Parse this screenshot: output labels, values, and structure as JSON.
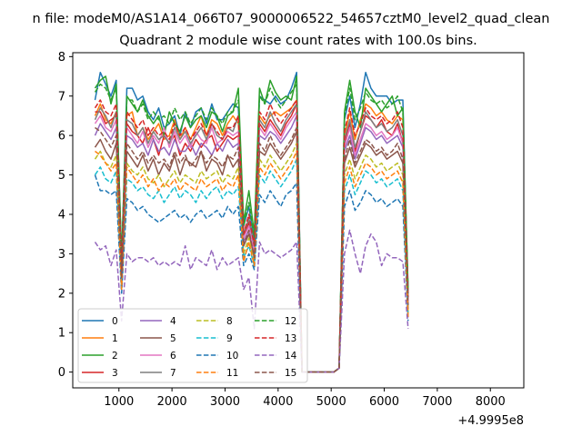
{
  "chart_data": {
    "type": "line",
    "suptitle": "n file: modeM0/AS1A14_066T07_9000006522_54657cztM0_level2_quad_clean",
    "title": "Quadrant 2 module wise count rates with 100.0s bins.",
    "xlabel": "",
    "ylabel": "",
    "x_offset_label": "+4.9995e8",
    "xlim": [
      130,
      8630
    ],
    "ylim": [
      -0.4,
      8.1
    ],
    "xticks": [
      1000,
      2000,
      3000,
      4000,
      5000,
      6000,
      7000,
      8000
    ],
    "yticks": [
      0,
      1,
      2,
      3,
      4,
      5,
      6,
      7,
      8
    ],
    "grid": false,
    "legend_position": "lower-left",
    "x_start": 550,
    "x_step": 100,
    "series": [
      {
        "name": "0",
        "color": "#1f77b4",
        "dash": "solid",
        "values": [
          6.9,
          7.6,
          7.3,
          7.0,
          7.4,
          2.8,
          7.2,
          7.2,
          6.9,
          7.0,
          6.6,
          6.4,
          6.7,
          6.2,
          6.3,
          6.5,
          6.0,
          6.6,
          6.2,
          6.6,
          6.7,
          6.3,
          6.8,
          6.4,
          6.4,
          6.6,
          6.8,
          6.7,
          3.7,
          4.2,
          3.3,
          7.0,
          6.9,
          6.8,
          7.0,
          6.8,
          6.9,
          7.2,
          7.6,
          0,
          0,
          0,
          0,
          0,
          0,
          0,
          0.1,
          6.4,
          7.0,
          6.2,
          6.8,
          7.6,
          7.2,
          7.0,
          7.0,
          7.0,
          6.8,
          6.9,
          6.9,
          2.0
        ]
      },
      {
        "name": "1",
        "color": "#ff7f0e",
        "dash": "solid",
        "values": [
          6.5,
          6.8,
          6.4,
          6.3,
          6.6,
          2.6,
          6.5,
          6.6,
          6.0,
          6.2,
          5.9,
          6.1,
          6.3,
          5.9,
          6.0,
          6.4,
          5.9,
          6.2,
          5.9,
          6.2,
          6.5,
          6.0,
          6.4,
          6.3,
          6.0,
          6.3,
          6.5,
          6.3,
          3.5,
          3.9,
          3.0,
          6.5,
          6.3,
          6.5,
          6.6,
          6.5,
          6.6,
          6.7,
          6.9,
          0,
          0,
          0,
          0,
          0,
          0,
          0,
          0.1,
          6.0,
          6.6,
          5.9,
          6.4,
          6.8,
          6.7,
          6.5,
          6.6,
          6.4,
          6.3,
          6.5,
          6.4,
          1.8
        ]
      },
      {
        "name": "2",
        "color": "#2ca02c",
        "dash": "solid",
        "values": [
          7.2,
          7.4,
          7.5,
          6.8,
          7.3,
          2.9,
          7.0,
          6.8,
          6.6,
          6.9,
          6.5,
          6.3,
          6.5,
          6.0,
          6.6,
          6.3,
          6.1,
          6.5,
          6.2,
          6.4,
          6.5,
          6.2,
          6.6,
          6.5,
          6.1,
          6.5,
          6.6,
          7.2,
          3.8,
          4.6,
          3.5,
          7.2,
          6.8,
          7.4,
          7.1,
          6.9,
          7.0,
          6.9,
          7.5,
          0,
          0,
          0,
          0,
          0,
          0,
          0,
          0.1,
          6.6,
          7.4,
          6.6,
          6.2,
          7.2,
          7.0,
          6.8,
          6.6,
          6.8,
          7.0,
          6.5,
          6.7,
          2.1
        ]
      },
      {
        "name": "3",
        "color": "#d62728",
        "dash": "solid",
        "values": [
          6.6,
          6.6,
          6.3,
          6.4,
          6.5,
          2.5,
          6.3,
          6.1,
          6.0,
          5.8,
          6.2,
          5.9,
          5.5,
          6.0,
          5.8,
          6.0,
          5.5,
          5.8,
          5.6,
          5.9,
          5.7,
          5.9,
          6.0,
          5.6,
          5.8,
          6.0,
          5.9,
          6.0,
          3.4,
          3.8,
          3.1,
          6.3,
          6.1,
          6.4,
          6.2,
          6.0,
          6.3,
          6.5,
          6.8,
          0,
          0,
          0,
          0,
          0,
          0,
          0,
          0.1,
          5.8,
          6.3,
          5.6,
          6.1,
          6.5,
          6.4,
          6.2,
          6.4,
          6.1,
          6.0,
          6.3,
          5.8,
          1.8
        ]
      },
      {
        "name": "4",
        "color": "#9467bd",
        "dash": "solid",
        "values": [
          6.0,
          6.3,
          6.1,
          5.9,
          6.2,
          2.4,
          6.0,
          5.9,
          5.7,
          5.8,
          5.5,
          5.9,
          5.6,
          5.7,
          5.5,
          5.9,
          5.6,
          5.6,
          5.8,
          5.5,
          5.8,
          5.7,
          5.5,
          5.8,
          5.6,
          5.9,
          5.7,
          5.8,
          3.3,
          3.6,
          3.0,
          6.0,
          5.9,
          6.1,
          6.0,
          5.8,
          6.0,
          6.2,
          6.5,
          0,
          0,
          0,
          0,
          0,
          0,
          0,
          0.1,
          5.6,
          6.0,
          5.4,
          5.8,
          6.2,
          6.1,
          5.9,
          6.0,
          5.8,
          5.9,
          6.0,
          5.7,
          1.7
        ]
      },
      {
        "name": "5",
        "color": "#8c564b",
        "dash": "solid",
        "values": [
          5.7,
          5.9,
          5.6,
          5.4,
          5.8,
          2.3,
          5.6,
          5.4,
          5.2,
          5.5,
          5.1,
          5.4,
          5.0,
          5.3,
          5.1,
          5.5,
          5.0,
          5.4,
          5.3,
          5.2,
          5.6,
          5.1,
          5.4,
          5.3,
          5.0,
          5.5,
          5.2,
          5.4,
          3.2,
          3.5,
          2.9,
          5.6,
          5.5,
          5.8,
          5.6,
          5.4,
          5.6,
          5.8,
          6.1,
          0,
          0,
          0,
          0,
          0,
          0,
          0,
          0.1,
          5.3,
          5.7,
          5.2,
          5.5,
          5.8,
          5.7,
          5.5,
          5.6,
          5.4,
          5.5,
          5.6,
          5.3,
          1.6
        ]
      },
      {
        "name": "6",
        "color": "#e377c2",
        "dash": "solid",
        "values": [
          6.3,
          6.5,
          6.2,
          6.1,
          6.4,
          2.5,
          6.2,
          6.0,
          5.8,
          6.1,
          5.7,
          6.0,
          5.8,
          6.2,
          5.7,
          6.1,
          5.8,
          6.0,
          5.7,
          6.1,
          5.9,
          5.8,
          6.2,
          5.8,
          5.9,
          6.1,
          6.0,
          6.1,
          3.4,
          3.7,
          3.1,
          6.2,
          6.0,
          6.3,
          6.1,
          5.9,
          6.2,
          6.4,
          6.6,
          0,
          0,
          0,
          0,
          0,
          0,
          0,
          0.1,
          5.7,
          6.2,
          5.5,
          5.9,
          6.3,
          6.2,
          6.0,
          6.1,
          5.9,
          6.0,
          6.2,
          5.8,
          1.8
        ]
      },
      {
        "name": "7",
        "color": "#7f7f7f",
        "dash": "solid",
        "values": [
          6.4,
          6.7,
          6.5,
          6.2,
          6.6,
          2.6,
          6.4,
          6.3,
          6.0,
          6.2,
          5.8,
          6.1,
          5.9,
          6.0,
          5.8,
          6.2,
          5.9,
          6.1,
          5.8,
          6.0,
          6.2,
          5.9,
          6.3,
          6.0,
          5.9,
          6.2,
          6.1,
          6.5,
          3.5,
          3.9,
          3.2,
          6.4,
          6.2,
          6.6,
          6.3,
          6.1,
          6.4,
          6.6,
          6.8,
          0,
          0,
          0,
          0,
          0,
          0,
          0,
          0.1,
          5.9,
          6.4,
          5.7,
          6.1,
          6.6,
          6.4,
          6.2,
          6.3,
          6.1,
          6.2,
          6.4,
          6.0,
          1.9
        ]
      },
      {
        "name": "8",
        "color": "#bcbd22",
        "dash": "dashed",
        "values": [
          5.4,
          5.6,
          5.3,
          5.2,
          5.5,
          2.2,
          5.3,
          5.1,
          5.0,
          5.2,
          4.9,
          4.8,
          5.0,
          4.7,
          4.9,
          5.1,
          4.8,
          5.0,
          4.9,
          4.8,
          5.1,
          4.9,
          5.0,
          5.1,
          4.8,
          5.0,
          4.9,
          5.2,
          3.0,
          3.4,
          2.8,
          5.4,
          5.2,
          5.5,
          5.3,
          5.1,
          5.3,
          5.5,
          5.8,
          0,
          0,
          0,
          0,
          0,
          0,
          0,
          0.1,
          5.0,
          5.4,
          4.9,
          5.2,
          5.5,
          5.4,
          5.2,
          5.3,
          5.1,
          5.2,
          5.3,
          5.0,
          1.5
        ]
      },
      {
        "name": "9",
        "color": "#17becf",
        "dash": "dashed",
        "values": [
          5.0,
          5.2,
          4.9,
          4.8,
          5.1,
          2.1,
          4.9,
          4.8,
          4.6,
          4.7,
          4.5,
          4.4,
          4.6,
          4.3,
          4.5,
          4.7,
          4.4,
          4.6,
          4.5,
          4.3,
          4.6,
          4.4,
          4.6,
          4.7,
          4.4,
          4.6,
          4.5,
          4.7,
          2.9,
          3.2,
          2.7,
          5.0,
          4.8,
          5.1,
          4.9,
          4.7,
          4.9,
          5.1,
          5.4,
          0,
          0,
          0,
          0,
          0,
          0,
          0,
          0.1,
          4.6,
          5.0,
          4.5,
          4.8,
          5.1,
          5.0,
          4.8,
          4.9,
          4.7,
          4.8,
          4.9,
          4.6,
          1.4
        ]
      },
      {
        "name": "10",
        "color": "#1f77b4",
        "dash": "dashed",
        "values": [
          5.0,
          4.6,
          4.6,
          4.5,
          4.6,
          2.0,
          4.4,
          4.3,
          4.1,
          4.2,
          4.0,
          3.9,
          3.8,
          3.9,
          4.0,
          4.1,
          3.9,
          4.0,
          3.8,
          4.0,
          4.1,
          3.9,
          4.0,
          4.1,
          3.9,
          4.2,
          4.0,
          4.2,
          2.7,
          3.0,
          2.6,
          4.5,
          4.3,
          4.6,
          4.4,
          4.2,
          4.5,
          4.6,
          4.8,
          0,
          0,
          0,
          0,
          0,
          0,
          0,
          0.1,
          4.2,
          4.6,
          4.1,
          4.3,
          4.6,
          4.5,
          4.3,
          4.4,
          4.2,
          4.3,
          4.4,
          4.2,
          1.3
        ]
      },
      {
        "name": "11",
        "color": "#ff7f0e",
        "dash": "dashed",
        "values": [
          5.6,
          5.5,
          5.3,
          5.1,
          5.3,
          2.1,
          5.2,
          5.0,
          4.8,
          5.0,
          4.7,
          4.9,
          4.6,
          4.8,
          4.7,
          4.9,
          4.6,
          4.8,
          4.7,
          4.6,
          4.9,
          4.7,
          4.8,
          4.9,
          4.6,
          4.8,
          4.7,
          5.0,
          2.8,
          3.3,
          2.7,
          5.2,
          5.0,
          5.3,
          5.1,
          4.9,
          5.1,
          5.3,
          5.6,
          0,
          0,
          0,
          0,
          0,
          0,
          0,
          0.1,
          4.8,
          5.2,
          4.7,
          5.0,
          5.3,
          5.2,
          5.0,
          5.1,
          4.9,
          5.0,
          5.1,
          4.8,
          1.4
        ]
      },
      {
        "name": "12",
        "color": "#2ca02c",
        "dash": "dashed",
        "values": [
          7.1,
          7.3,
          7.2,
          6.9,
          7.2,
          2.8,
          6.9,
          6.9,
          6.6,
          6.8,
          6.4,
          6.6,
          6.4,
          6.5,
          6.3,
          6.7,
          6.4,
          6.6,
          6.3,
          6.5,
          6.7,
          6.4,
          6.7,
          6.5,
          6.3,
          6.6,
          6.6,
          6.9,
          3.7,
          4.3,
          3.4,
          7.0,
          6.8,
          7.2,
          6.9,
          6.7,
          6.9,
          7.1,
          7.3,
          0,
          0,
          0,
          0,
          0,
          0,
          0,
          0.1,
          6.5,
          7.2,
          6.4,
          6.7,
          7.1,
          6.9,
          6.8,
          6.9,
          6.7,
          6.8,
          7.0,
          6.6,
          2.0
        ]
      },
      {
        "name": "13",
        "color": "#d62728",
        "dash": "dashed",
        "values": [
          6.7,
          6.9,
          6.6,
          6.5,
          6.8,
          2.6,
          6.6,
          6.4,
          6.2,
          6.4,
          6.0,
          6.2,
          6.0,
          6.1,
          5.9,
          6.3,
          6.0,
          6.2,
          5.9,
          6.1,
          6.3,
          6.0,
          6.3,
          6.1,
          5.9,
          6.2,
          6.2,
          6.5,
          3.5,
          4.0,
          3.2,
          6.6,
          6.4,
          6.8,
          6.5,
          6.3,
          6.5,
          6.7,
          6.9,
          0,
          0,
          0,
          0,
          0,
          0,
          0,
          0.1,
          6.1,
          6.7,
          6.0,
          6.3,
          6.7,
          6.5,
          6.4,
          6.5,
          6.3,
          6.4,
          6.6,
          6.2,
          1.9
        ]
      },
      {
        "name": "14",
        "color": "#9467bd",
        "dash": "dashed",
        "values": [
          3.3,
          3.1,
          3.2,
          2.7,
          3.1,
          1.3,
          3.0,
          2.8,
          2.9,
          2.9,
          2.8,
          2.9,
          2.7,
          2.8,
          2.7,
          2.8,
          2.7,
          3.2,
          2.6,
          2.9,
          2.8,
          2.7,
          3.1,
          2.6,
          2.9,
          2.7,
          2.8,
          2.9,
          2.1,
          2.4,
          1.1,
          3.3,
          3.0,
          3.1,
          3.0,
          2.9,
          3.0,
          3.1,
          3.3,
          0,
          0,
          0,
          0,
          0,
          0,
          0,
          0.1,
          3.0,
          3.6,
          3.0,
          2.5,
          3.2,
          3.5,
          3.3,
          2.7,
          3.0,
          2.9,
          2.9,
          2.8,
          1.1
        ]
      },
      {
        "name": "15",
        "color": "#8c564b",
        "dash": "dashed",
        "values": [
          6.2,
          6.1,
          5.9,
          5.7,
          6.0,
          2.4,
          5.8,
          5.6,
          5.4,
          5.6,
          5.3,
          5.5,
          5.3,
          5.4,
          5.2,
          5.6,
          5.3,
          5.5,
          5.2,
          5.4,
          5.6,
          5.3,
          5.5,
          5.4,
          5.2,
          5.5,
          5.4,
          5.7,
          3.2,
          3.6,
          2.9,
          5.8,
          5.6,
          6.0,
          5.7,
          5.5,
          5.7,
          5.9,
          6.2,
          0,
          0,
          0,
          0,
          0,
          0,
          0,
          0.1,
          5.4,
          5.9,
          5.3,
          5.6,
          5.9,
          5.8,
          5.6,
          5.7,
          5.5,
          5.6,
          5.8,
          5.4,
          1.7
        ]
      }
    ]
  }
}
